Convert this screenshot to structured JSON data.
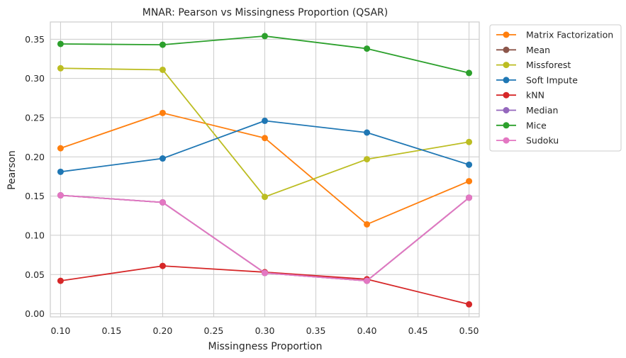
{
  "chart_data": {
    "type": "line",
    "title": "MNAR: Pearson vs Missingness Proportion (QSAR)",
    "xlabel": "Missingness Proportion",
    "ylabel": "Pearson",
    "xlim": [
      0.09,
      0.51
    ],
    "ylim": [
      -0.004,
      0.372
    ],
    "xticks": [
      0.1,
      0.15,
      0.2,
      0.25,
      0.3,
      0.35,
      0.4,
      0.45,
      0.5
    ],
    "yticks": [
      0.0,
      0.05,
      0.1,
      0.15,
      0.2,
      0.25,
      0.3,
      0.35
    ],
    "grid": true,
    "legend_position": "outside-top-right",
    "x": [
      0.1,
      0.2,
      0.3,
      0.4,
      0.5
    ],
    "series": [
      {
        "name": "Matrix Factorization",
        "color": "#ff7f0e",
        "values": [
          0.211,
          0.256,
          0.224,
          0.114,
          0.169
        ]
      },
      {
        "name": "Mean",
        "color": "#8c564b",
        "values": [
          0.151,
          0.142,
          0.052,
          0.042,
          0.148
        ]
      },
      {
        "name": "Missforest",
        "color": "#bcbd22",
        "values": [
          0.313,
          0.311,
          0.149,
          0.197,
          0.219
        ]
      },
      {
        "name": "Soft Impute",
        "color": "#1f77b4",
        "values": [
          0.181,
          0.198,
          0.246,
          0.231,
          0.19
        ]
      },
      {
        "name": "kNN",
        "color": "#d62728",
        "values": [
          0.042,
          0.061,
          0.053,
          0.044,
          0.012
        ]
      },
      {
        "name": "Median",
        "color": "#9467bd",
        "values": [
          0.151,
          0.142,
          0.052,
          0.042,
          0.148
        ]
      },
      {
        "name": "Mice",
        "color": "#2ca02c",
        "values": [
          0.344,
          0.343,
          0.354,
          0.338,
          0.307
        ]
      },
      {
        "name": "Sudoku",
        "color": "#e377c2",
        "values": [
          0.151,
          0.142,
          0.052,
          0.042,
          0.148
        ]
      }
    ]
  }
}
